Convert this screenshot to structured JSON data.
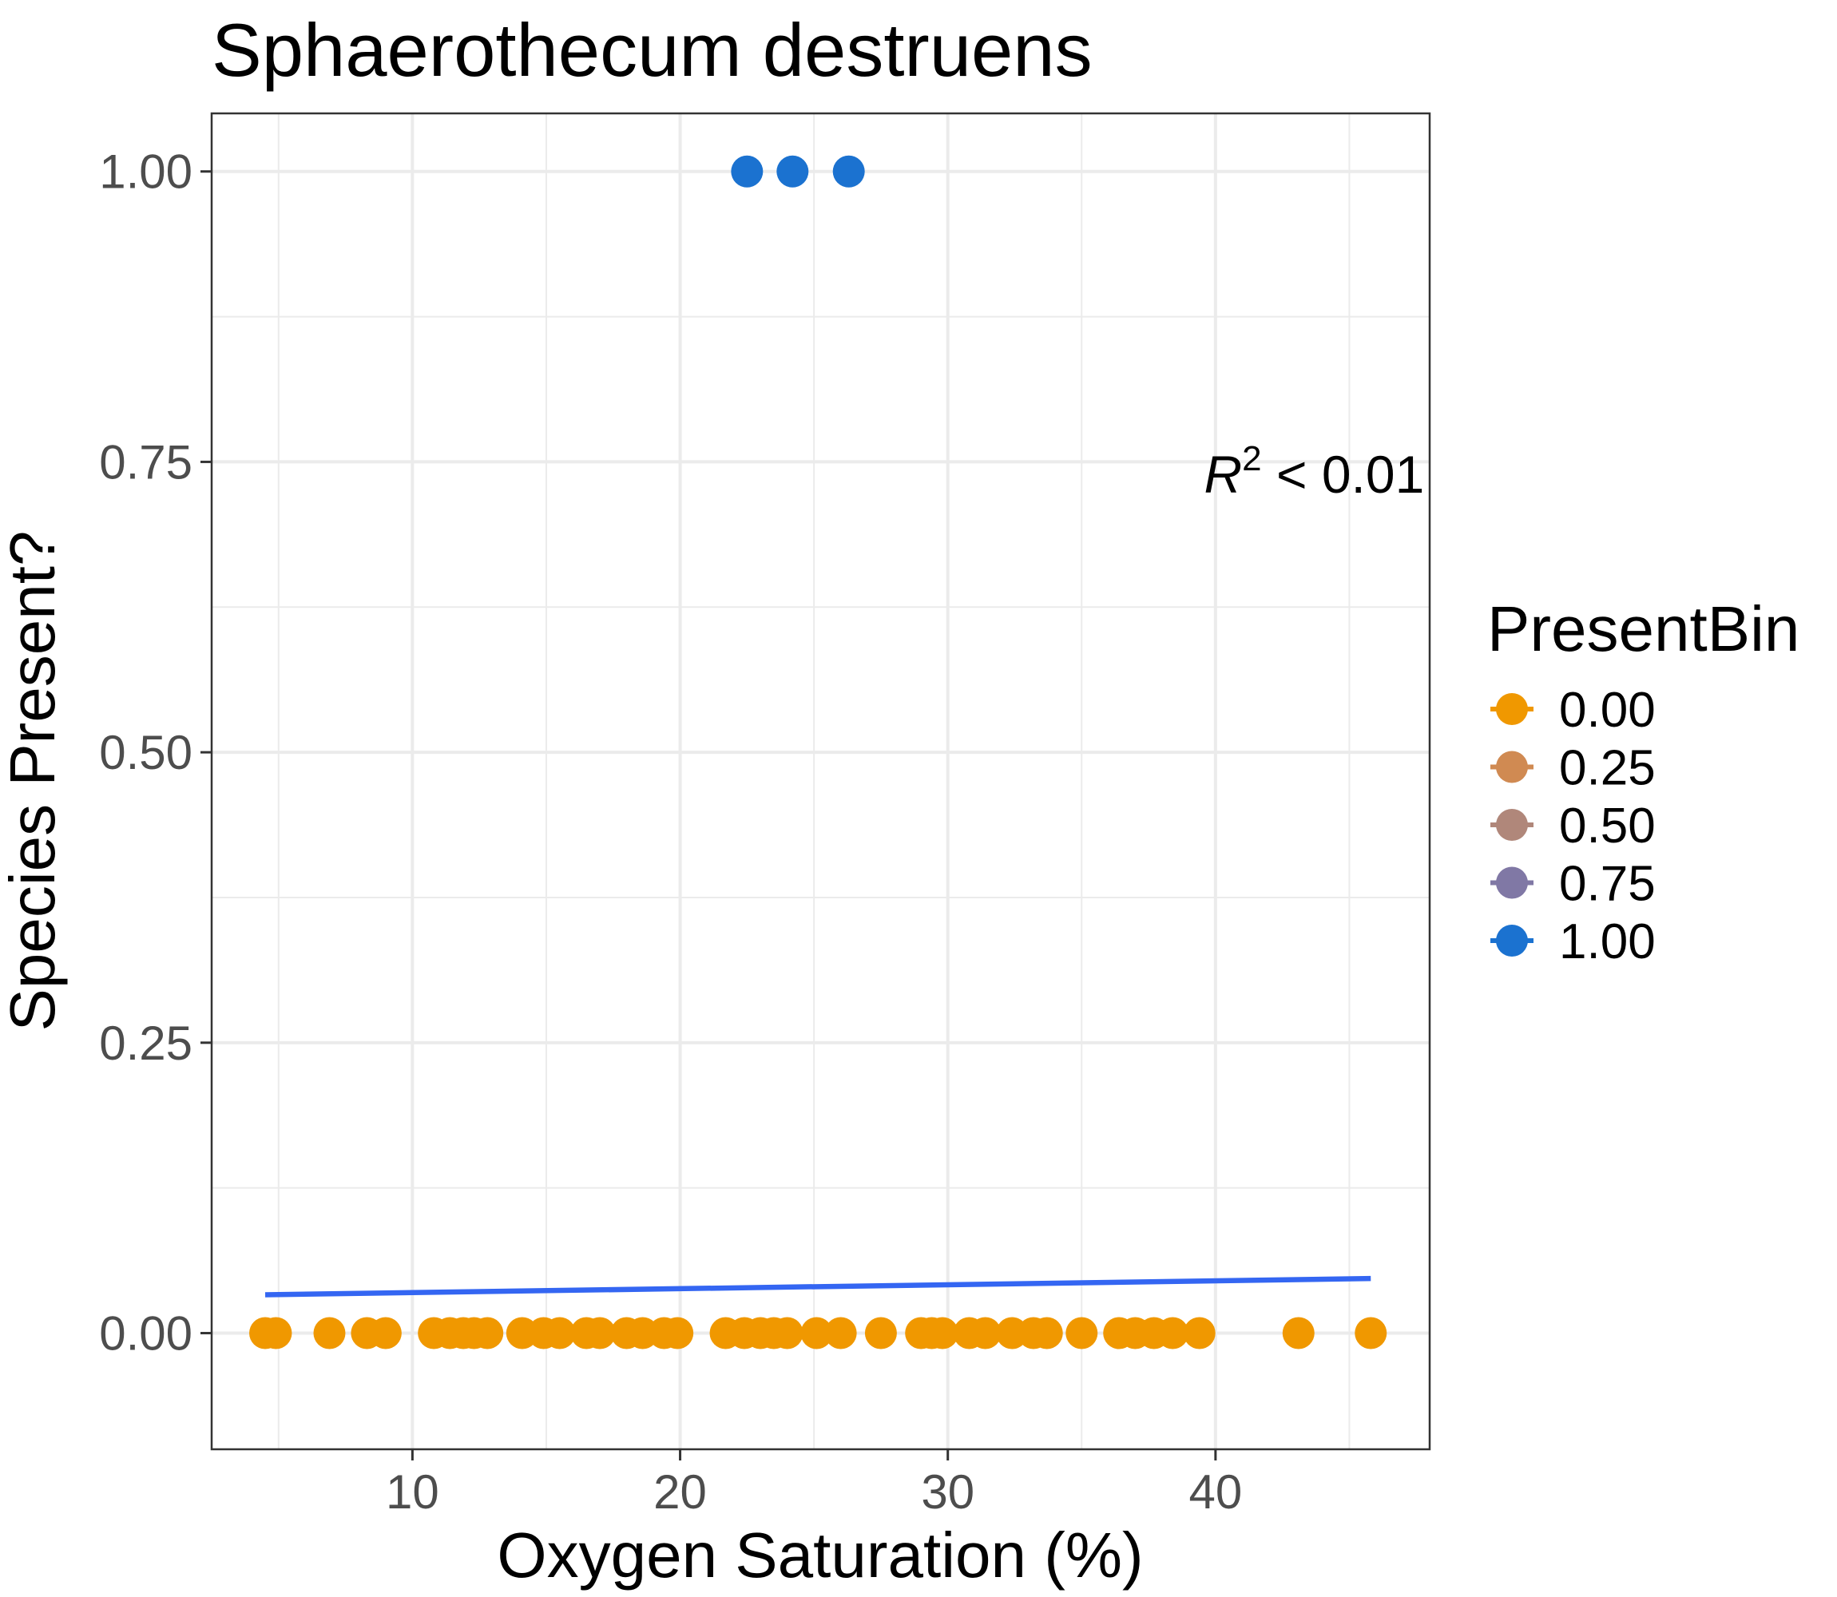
{
  "chart_data": {
    "type": "scatter",
    "title": "Sphaerothecum destruens",
    "xlabel": "Oxygen Saturation (%)",
    "ylabel": "Species Present?",
    "xlim": [
      2.5,
      48
    ],
    "ylim": [
      -0.1,
      1.05
    ],
    "x_ticks": [
      10,
      20,
      30,
      40
    ],
    "y_ticks": [
      0.0,
      0.25,
      0.5,
      0.75,
      1.0
    ],
    "x_tick_labels": [
      "10",
      "20",
      "30",
      "40"
    ],
    "y_tick_labels": [
      "0.00",
      "0.25",
      "0.50",
      "0.75",
      "1.00"
    ],
    "grid": true,
    "legend": {
      "title": "PresentBin",
      "placement": "right",
      "entries": [
        {
          "label": "0.00",
          "color": "#f09800"
        },
        {
          "label": "0.25",
          "color": "#d08a52"
        },
        {
          "label": "0.50",
          "color": "#b0877a"
        },
        {
          "label": "0.75",
          "color": "#8078a5"
        },
        {
          "label": "1.00",
          "color": "#1b72d0"
        }
      ]
    },
    "annotation": {
      "text": "R",
      "sup": "2",
      "rest": " < 0.01",
      "x": 47.8,
      "y": 0.74
    },
    "trend_line": {
      "color": "#3466f2",
      "x": [
        4.5,
        45.8
      ],
      "y": [
        0.033,
        0.047
      ]
    },
    "series": [
      {
        "bin": "0.00",
        "color": "#f09800",
        "x": [
          4.5,
          4.9,
          6.9,
          8.3,
          9.0,
          10.8,
          11.4,
          11.9,
          12.3,
          12.8,
          14.1,
          14.9,
          15.5,
          16.5,
          17.0,
          18.0,
          18.6,
          19.4,
          19.9,
          21.7,
          22.4,
          23.0,
          23.5,
          24.0,
          25.1,
          26.0,
          27.5,
          29.0,
          29.4,
          29.8,
          30.8,
          31.4,
          32.4,
          33.2,
          33.7,
          35.0,
          36.4,
          37.0,
          37.7,
          38.4,
          39.4,
          43.1,
          45.8
        ],
        "y": [
          0,
          0,
          0,
          0,
          0,
          0,
          0,
          0,
          0,
          0,
          0,
          0,
          0,
          0,
          0,
          0,
          0,
          0,
          0,
          0,
          0,
          0,
          0,
          0,
          0,
          0,
          0,
          0,
          0,
          0,
          0,
          0,
          0,
          0,
          0,
          0,
          0,
          0,
          0,
          0,
          0,
          0,
          0
        ]
      },
      {
        "bin": "1.00",
        "color": "#1b72d0",
        "x": [
          22.5,
          24.2,
          26.3
        ],
        "y": [
          1,
          1,
          1
        ]
      }
    ]
  }
}
